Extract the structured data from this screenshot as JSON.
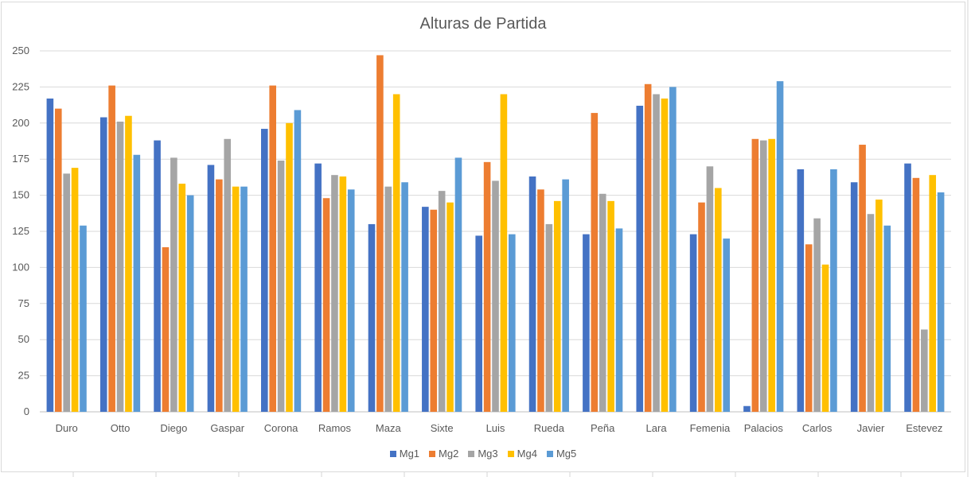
{
  "chart_data": {
    "type": "bar",
    "title": "Alturas de Partida",
    "xlabel": "",
    "ylabel": "",
    "ylim": [
      0,
      250
    ],
    "yticks": [
      0,
      25,
      50,
      75,
      100,
      125,
      150,
      175,
      200,
      225,
      250
    ],
    "grid": true,
    "legend_position": "bottom",
    "categories": [
      "Duro",
      "Otto",
      "Diego",
      "Gaspar",
      "Corona",
      "Ramos",
      "Maza",
      "Sixte",
      "Luis",
      "Rueda",
      "Peña",
      "Lara",
      "Femenia",
      "Palacios",
      "Carlos",
      "Javier",
      "Estevez"
    ],
    "series": [
      {
        "name": "Mg1",
        "color": "#4472c4",
        "values": [
          217,
          204,
          188,
          171,
          196,
          172,
          130,
          142,
          122,
          163,
          123,
          212,
          123,
          4,
          168,
          159,
          172
        ]
      },
      {
        "name": "Mg2",
        "color": "#ed7d31",
        "values": [
          210,
          226,
          114,
          161,
          226,
          148,
          247,
          140,
          173,
          154,
          207,
          227,
          145,
          189,
          116,
          185,
          162
        ]
      },
      {
        "name": "Mg3",
        "color": "#a5a5a5",
        "values": [
          165,
          201,
          176,
          189,
          174,
          164,
          156,
          153,
          160,
          130,
          151,
          220,
          170,
          188,
          134,
          137,
          57
        ]
      },
      {
        "name": "Mg4",
        "color": "#ffc000",
        "values": [
          169,
          205,
          158,
          156,
          200,
          163,
          220,
          145,
          220,
          146,
          146,
          217,
          155,
          189,
          102,
          147,
          164
        ]
      },
      {
        "name": "Mg5",
        "color": "#5b9bd5",
        "values": [
          129,
          178,
          150,
          156,
          209,
          154,
          159,
          176,
          123,
          161,
          127,
          225,
          120,
          229,
          168,
          129,
          152
        ]
      }
    ]
  }
}
